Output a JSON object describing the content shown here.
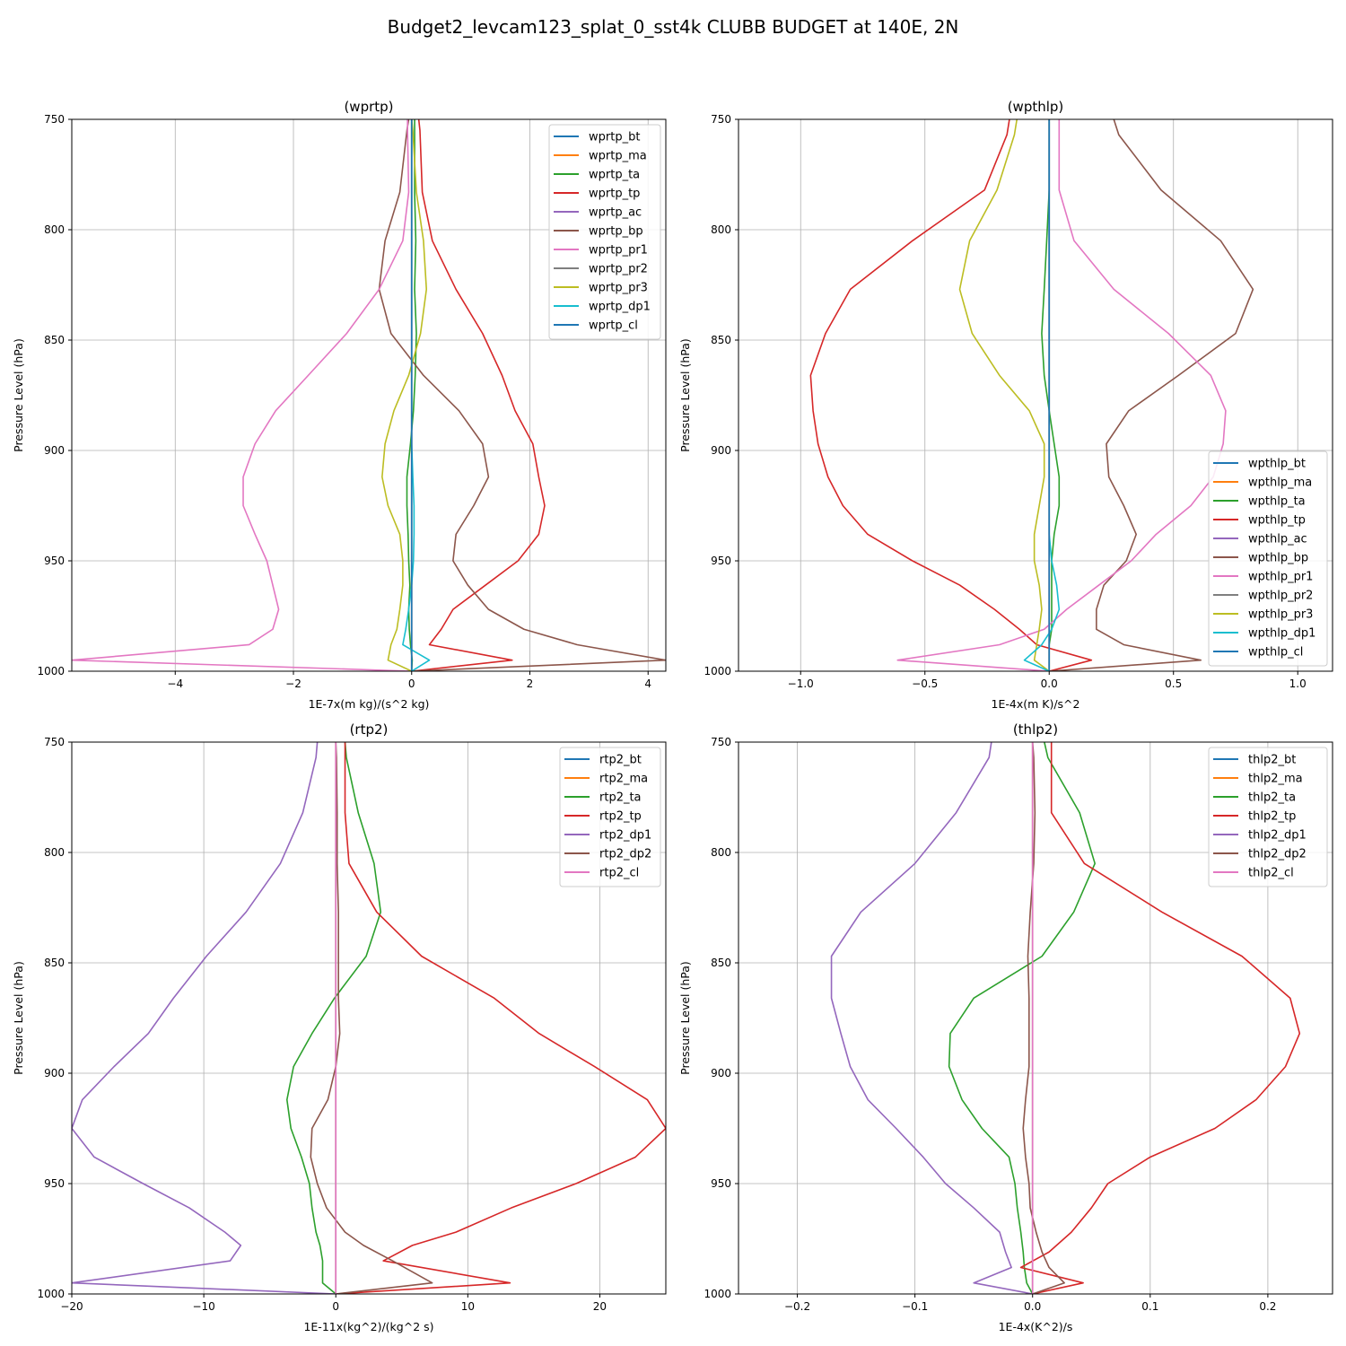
{
  "figure_title": "Budget2_levcam123_splat_0_sst4k CLUBB BUDGET at 140E, 2N",
  "colors": {
    "C0": "#1f77b4",
    "C1": "#ff7f0e",
    "C2": "#2ca02c",
    "C3": "#d62728",
    "C4": "#9467bd",
    "C5": "#8c564b",
    "C6": "#e377c2",
    "C7": "#7f7f7f",
    "C8": "#bcbd22",
    "C9": "#17becf",
    "grid": "#b0b0b0"
  },
  "chart_data": [
    {
      "id": "wprtp",
      "type": "line",
      "title": "(wprtp)",
      "xlabel": "1E-7x(m kg)/(s^2 kg)",
      "ylabel": "Pressure Level (hPa)",
      "xlim": [
        -5.75,
        4.3
      ],
      "ylim": [
        1000,
        750
      ],
      "xticks": [
        -4,
        -2,
        0,
        2,
        4
      ],
      "xticklabels": [
        "−4",
        "−2",
        "0",
        "2",
        "4"
      ],
      "yticks": [
        750,
        800,
        850,
        900,
        950,
        1000
      ],
      "yticklabels": [
        "750",
        "800",
        "850",
        "900",
        "950",
        "1000"
      ],
      "legend": "upper right",
      "y": [
        750,
        755,
        783,
        805,
        827,
        847,
        866,
        882,
        897,
        912,
        925,
        938,
        950,
        961,
        972,
        981,
        988,
        995,
        1000
      ],
      "series": [
        {
          "name": "wprtp_bt",
          "color": "C0",
          "values": [
            0,
            0,
            0,
            0,
            0,
            0,
            0,
            0,
            0,
            0,
            0,
            0,
            0,
            0,
            0,
            0,
            0,
            0,
            0
          ]
        },
        {
          "name": "wprtp_ma",
          "color": "C1",
          "values": [
            0,
            0,
            0,
            0,
            0,
            0,
            0,
            0,
            0,
            0,
            0,
            0,
            0,
            0,
            0,
            0,
            0,
            0,
            0
          ]
        },
        {
          "name": "wprtp_ta",
          "color": "C2",
          "values": [
            0.05,
            0.05,
            0.05,
            0.07,
            0.05,
            0.08,
            0.06,
            0.03,
            -0.02,
            -0.08,
            -0.08,
            -0.06,
            -0.05,
            -0.03,
            -0.05,
            -0.04,
            -0.02,
            0.01,
            0
          ]
        },
        {
          "name": "wprtp_tp",
          "color": "C3",
          "values": [
            0.12,
            0.14,
            0.18,
            0.35,
            0.75,
            1.2,
            1.53,
            1.75,
            2.05,
            2.15,
            2.25,
            2.15,
            1.8,
            1.25,
            0.7,
            0.5,
            0.3,
            1.7,
            0
          ]
        },
        {
          "name": "wprtp_ac",
          "color": "C4",
          "values": [
            0,
            0,
            0,
            0,
            0,
            0,
            0,
            0,
            0,
            0,
            0,
            0,
            0,
            0,
            0,
            0,
            0,
            0,
            0
          ]
        },
        {
          "name": "wprtp_bp",
          "color": "C5",
          "values": [
            -0.05,
            -0.08,
            -0.2,
            -0.45,
            -0.55,
            -0.35,
            0.2,
            0.8,
            1.2,
            1.3,
            1.05,
            0.75,
            0.7,
            0.95,
            1.3,
            1.9,
            2.8,
            4.3,
            0
          ]
        },
        {
          "name": "wprtp_pr1",
          "color": "C6",
          "values": [
            -0.07,
            -0.07,
            -0.05,
            -0.15,
            -0.55,
            -1.1,
            -1.75,
            -2.3,
            -2.65,
            -2.85,
            -2.85,
            -2.65,
            -2.45,
            -2.35,
            -2.25,
            -2.35,
            -2.75,
            -5.75,
            0
          ]
        },
        {
          "name": "wprtp_pr2",
          "color": "C7",
          "values": [
            0,
            0,
            0,
            0,
            0,
            0,
            0,
            0,
            0,
            0,
            0,
            0,
            0,
            0,
            0,
            0,
            0,
            0,
            0
          ]
        },
        {
          "name": "wprtp_pr3",
          "color": "C8",
          "values": [
            0,
            0.02,
            0.08,
            0.2,
            0.25,
            0.15,
            -0.05,
            -0.3,
            -0.45,
            -0.5,
            -0.4,
            -0.2,
            -0.15,
            -0.15,
            -0.2,
            -0.25,
            -0.35,
            -0.4,
            0
          ]
        },
        {
          "name": "wprtp_dp1",
          "color": "C9",
          "values": [
            0,
            0,
            0,
            0,
            0,
            0,
            0,
            0,
            0,
            0.02,
            0.04,
            0.04,
            0.03,
            0,
            -0.05,
            -0.1,
            -0.15,
            0.3,
            0
          ]
        },
        {
          "name": "wprtp_cl",
          "color": "C0",
          "values": [
            0,
            0,
            0,
            0,
            0,
            0,
            0,
            0,
            0,
            0,
            0,
            0,
            0,
            0,
            0,
            0,
            0,
            0,
            0
          ]
        }
      ]
    },
    {
      "id": "wpthlp",
      "type": "line",
      "title": "(wpthlp)",
      "xlabel": "1E-4x(m K)/s^2",
      "ylabel": "Pressure Level (hPa)",
      "xlim": [
        -1.25,
        1.14
      ],
      "ylim": [
        1000,
        750
      ],
      "xticks": [
        -1.0,
        -0.5,
        0.0,
        0.5,
        1.0
      ],
      "xticklabels": [
        "−1.0",
        "−0.5",
        "0.0",
        "0.5",
        "1.0"
      ],
      "yticks": [
        750,
        800,
        850,
        900,
        950,
        1000
      ],
      "yticklabels": [
        "750",
        "800",
        "850",
        "900",
        "950",
        "1000"
      ],
      "legend": "lower right",
      "y": [
        750,
        757,
        782,
        805,
        827,
        847,
        866,
        882,
        897,
        912,
        925,
        938,
        950,
        961,
        972,
        981,
        988,
        995,
        1000
      ],
      "series": [
        {
          "name": "wpthlp_bt",
          "color": "C0",
          "values": [
            0,
            0,
            0,
            0,
            0,
            0,
            0,
            0,
            0,
            0,
            0,
            0,
            0,
            0,
            0,
            0,
            0,
            0,
            0
          ]
        },
        {
          "name": "wpthlp_ma",
          "color": "C1",
          "values": [
            0,
            0,
            0,
            0,
            0,
            0,
            0,
            0,
            0,
            0,
            0,
            0,
            0,
            0,
            0,
            0,
            0,
            0,
            0
          ]
        },
        {
          "name": "wpthlp_ta",
          "color": "C2",
          "values": [
            0,
            0,
            0,
            -0.01,
            -0.02,
            -0.03,
            -0.02,
            0,
            0.02,
            0.04,
            0.04,
            0.02,
            0.01,
            0.01,
            0.01,
            0.01,
            0,
            0,
            0
          ]
        },
        {
          "name": "wpthlp_tp",
          "color": "C3",
          "values": [
            -0.16,
            -0.17,
            -0.26,
            -0.55,
            -0.8,
            -0.9,
            -0.96,
            -0.95,
            -0.93,
            -0.89,
            -0.83,
            -0.73,
            -0.55,
            -0.36,
            -0.22,
            -0.12,
            -0.05,
            0.17,
            0
          ]
        },
        {
          "name": "wpthlp_ac",
          "color": "C4",
          "values": [
            0,
            0,
            0,
            0,
            0,
            0,
            0,
            0,
            0,
            0,
            0,
            0,
            0,
            0,
            0,
            0,
            0,
            0,
            0
          ]
        },
        {
          "name": "wpthlp_bp",
          "color": "C5",
          "values": [
            0.26,
            0.28,
            0.45,
            0.69,
            0.82,
            0.75,
            0.52,
            0.32,
            0.23,
            0.24,
            0.3,
            0.35,
            0.31,
            0.22,
            0.19,
            0.19,
            0.3,
            0.61,
            0
          ]
        },
        {
          "name": "wpthlp_pr1",
          "color": "C6",
          "values": [
            0.04,
            0.04,
            0.04,
            0.1,
            0.26,
            0.48,
            0.65,
            0.71,
            0.7,
            0.66,
            0.57,
            0.43,
            0.33,
            0.2,
            0.07,
            -0.02,
            -0.2,
            -0.61,
            0
          ]
        },
        {
          "name": "wpthlp_pr2",
          "color": "C7",
          "values": [
            0,
            0,
            0,
            0,
            0,
            0,
            0,
            0,
            0,
            0,
            0,
            0,
            0,
            0,
            0,
            0,
            0,
            0,
            0
          ]
        },
        {
          "name": "wpthlp_pr3",
          "color": "C8",
          "values": [
            -0.13,
            -0.14,
            -0.21,
            -0.32,
            -0.36,
            -0.31,
            -0.2,
            -0.08,
            -0.02,
            -0.02,
            -0.04,
            -0.06,
            -0.06,
            -0.04,
            -0.03,
            -0.04,
            -0.05,
            -0.06,
            0
          ]
        },
        {
          "name": "wpthlp_dp1",
          "color": "C9",
          "values": [
            0,
            0,
            0,
            0,
            0,
            0,
            0,
            0,
            0,
            0,
            0,
            0,
            0.01,
            0.03,
            0.04,
            0.01,
            -0.03,
            -0.1,
            0
          ]
        },
        {
          "name": "wpthlp_cl",
          "color": "C0",
          "values": [
            0,
            0,
            0,
            0,
            0,
            0,
            0,
            0,
            0,
            0,
            0,
            0,
            0,
            0,
            0,
            0,
            0,
            0,
            0
          ]
        }
      ]
    },
    {
      "id": "rtp2",
      "type": "line",
      "title": "(rtp2)",
      "xlabel": "1E-11x(kg^2)/(kg^2 s)",
      "ylabel": "Pressure Level (hPa)",
      "xlim": [
        -20,
        25
      ],
      "ylim": [
        1000,
        750
      ],
      "xticks": [
        -20,
        -10,
        0,
        10,
        20
      ],
      "xticklabels": [
        "−20",
        "−10",
        "0",
        "10",
        "20"
      ],
      "yticks": [
        750,
        800,
        850,
        900,
        950,
        1000
      ],
      "yticklabels": [
        "750",
        "800",
        "850",
        "900",
        "950",
        "1000"
      ],
      "legend": "upper right",
      "y": [
        750,
        757,
        782,
        805,
        827,
        847,
        866,
        882,
        897,
        912,
        925,
        938,
        950,
        961,
        972,
        978,
        985,
        995,
        1000
      ],
      "series": [
        {
          "name": "rtp2_bt",
          "color": "C0",
          "values": [
            0,
            0,
            0,
            0,
            0,
            0,
            0,
            0,
            0,
            0,
            0,
            0,
            0,
            0,
            0,
            0,
            0,
            0,
            0
          ]
        },
        {
          "name": "rtp2_ma",
          "color": "C1",
          "values": [
            0,
            0,
            0,
            0,
            0,
            0,
            0,
            0,
            0,
            0,
            0,
            0,
            0,
            0,
            0,
            0,
            0,
            0,
            0
          ]
        },
        {
          "name": "rtp2_ta",
          "color": "C2",
          "values": [
            0.7,
            0.8,
            1.7,
            2.9,
            3.4,
            2.3,
            -0.1,
            -1.8,
            -3.2,
            -3.7,
            -3.4,
            -2.6,
            -2.0,
            -1.8,
            -1.5,
            -1.2,
            -1.0,
            -1.0,
            0
          ]
        },
        {
          "name": "rtp2_tp",
          "color": "C3",
          "values": [
            0.7,
            0.7,
            0.7,
            1.0,
            3.1,
            6.5,
            12.0,
            15.4,
            19.6,
            23.6,
            25.0,
            22.7,
            18.2,
            13.3,
            9.1,
            5.8,
            3.6,
            13.2,
            0
          ]
        },
        {
          "name": "rtp2_dp1",
          "color": "C4",
          "values": [
            -1.4,
            -1.5,
            -2.5,
            -4.2,
            -6.8,
            -9.8,
            -12.3,
            -14.2,
            -16.8,
            -19.2,
            -20.0,
            -18.3,
            -14.6,
            -11.1,
            -8.4,
            -7.2,
            -8.0,
            -20.0,
            0
          ]
        },
        {
          "name": "rtp2_dp2",
          "color": "C5",
          "values": [
            0,
            0.05,
            0.1,
            0.1,
            0.2,
            0.2,
            0.2,
            0.3,
            0,
            -0.6,
            -1.8,
            -1.9,
            -1.4,
            -0.7,
            0.7,
            2.1,
            4.3,
            7.3,
            0
          ]
        },
        {
          "name": "rtp2_cl",
          "color": "C6",
          "values": [
            0,
            0,
            0,
            0,
            0,
            0,
            0,
            0,
            0,
            0,
            0,
            0,
            0,
            0,
            0,
            0,
            0,
            0,
            0
          ]
        }
      ]
    },
    {
      "id": "thlp2",
      "type": "line",
      "title": "(thlp2)",
      "xlabel": "1E-4x(K^2)/s",
      "ylabel": "Pressure Level (hPa)",
      "xlim": [
        -0.25,
        0.255
      ],
      "ylim": [
        1000,
        750
      ],
      "xticks": [
        -0.2,
        -0.1,
        0.0,
        0.1,
        0.2
      ],
      "xticklabels": [
        "−0.2",
        "−0.1",
        "0.0",
        "0.1",
        "0.2"
      ],
      "yticks": [
        750,
        800,
        850,
        900,
        950,
        1000
      ],
      "yticklabels": [
        "750",
        "800",
        "850",
        "900",
        "950",
        "1000"
      ],
      "legend": "upper right",
      "y": [
        750,
        757,
        782,
        805,
        827,
        847,
        866,
        882,
        897,
        912,
        925,
        938,
        950,
        961,
        972,
        981,
        988,
        995,
        1000
      ],
      "series": [
        {
          "name": "thlp2_bt",
          "color": "C0",
          "values": [
            0,
            0,
            0,
            0,
            0,
            0,
            0,
            0,
            0,
            0,
            0,
            0,
            0,
            0,
            0,
            0,
            0,
            0,
            0
          ]
        },
        {
          "name": "thlp2_ma",
          "color": "C1",
          "values": [
            0,
            0,
            0,
            0,
            0,
            0,
            0,
            0,
            0,
            0,
            0,
            0,
            0,
            0,
            0,
            0,
            0,
            0,
            0
          ]
        },
        {
          "name": "thlp2_ta",
          "color": "C2",
          "values": [
            0.01,
            0.013,
            0.04,
            0.053,
            0.035,
            0.008,
            -0.05,
            -0.07,
            -0.071,
            -0.06,
            -0.043,
            -0.02,
            -0.015,
            -0.013,
            -0.01,
            -0.008,
            -0.007,
            -0.005,
            0
          ]
        },
        {
          "name": "thlp2_tp",
          "color": "C3",
          "values": [
            0.016,
            0.016,
            0.016,
            0.044,
            0.11,
            0.178,
            0.219,
            0.227,
            0.215,
            0.19,
            0.155,
            0.1,
            0.064,
            0.05,
            0.033,
            0.014,
            -0.01,
            0.043,
            0
          ]
        },
        {
          "name": "thlp2_dp1",
          "color": "C4",
          "values": [
            -0.035,
            -0.037,
            -0.065,
            -0.1,
            -0.146,
            -0.171,
            -0.171,
            -0.163,
            -0.155,
            -0.14,
            -0.116,
            -0.093,
            -0.074,
            -0.05,
            -0.028,
            -0.023,
            -0.018,
            -0.05,
            0
          ]
        },
        {
          "name": "thlp2_dp2",
          "color": "C5",
          "values": [
            0,
            0.001,
            0.002,
            0.001,
            -0.002,
            -0.004,
            -0.003,
            -0.003,
            -0.003,
            -0.006,
            -0.008,
            -0.006,
            -0.003,
            -0.002,
            0.003,
            0.008,
            0.014,
            0.027,
            0
          ]
        },
        {
          "name": "thlp2_cl",
          "color": "C6",
          "values": [
            0,
            0,
            0,
            0,
            0,
            0,
            0,
            0,
            0,
            0,
            0,
            0,
            0,
            0,
            0,
            0,
            0,
            0,
            0
          ]
        }
      ]
    }
  ]
}
